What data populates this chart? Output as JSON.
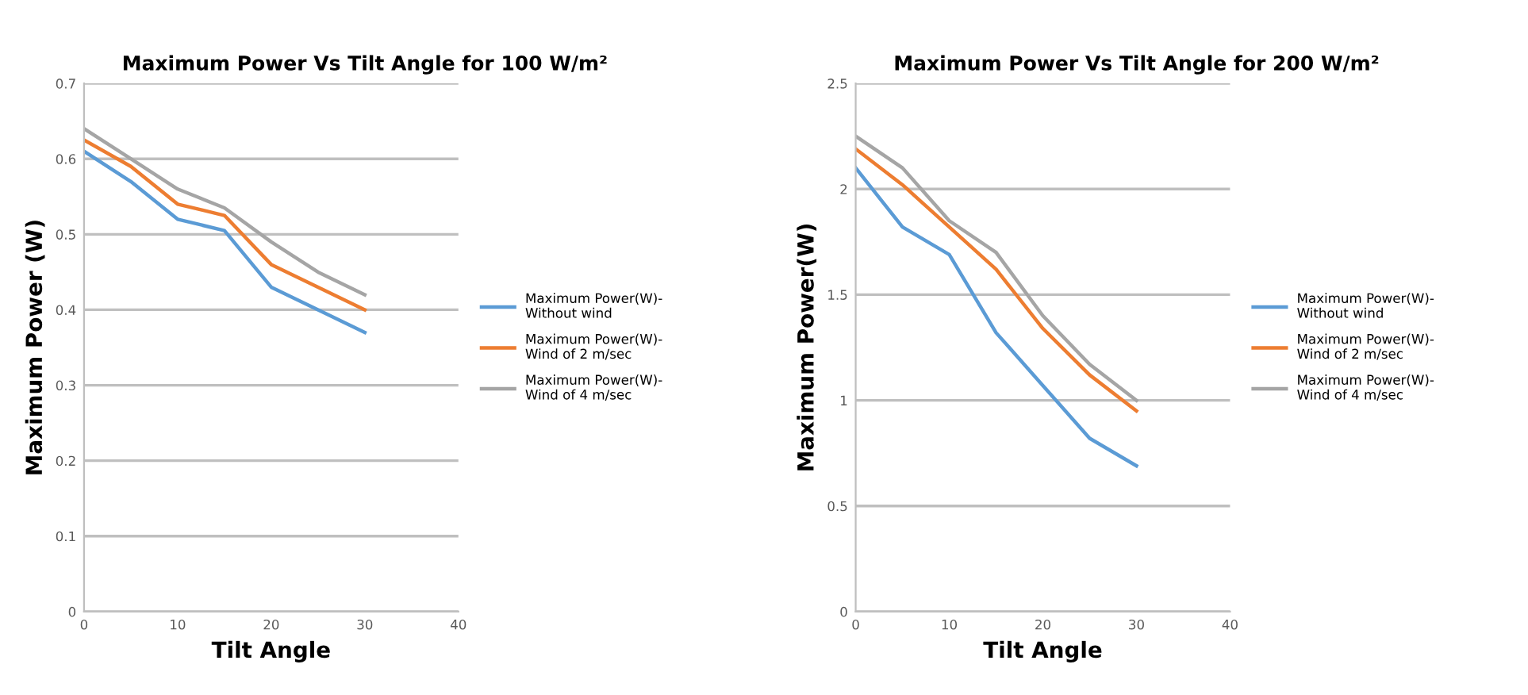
{
  "chart_data": [
    {
      "type": "line",
      "title": "Maximum Power Vs Tilt Angle for 100 W/m²",
      "xlabel": "Tilt Angle",
      "ylabel": "Maximum Power (W)",
      "x": [
        0,
        5,
        10,
        15,
        20,
        25,
        30
      ],
      "xlim": [
        0,
        40
      ],
      "xticks": [
        0,
        10,
        20,
        30,
        40
      ],
      "ylim": [
        0,
        0.7
      ],
      "yticks": [
        0,
        0.1,
        0.2,
        0.3,
        0.4,
        0.5,
        0.6,
        0.7
      ],
      "grid": "y",
      "legend": "right",
      "marker": "none",
      "series": [
        {
          "name": "Maximum Power(W)-\nWithout wind",
          "color": "#5b9bd5",
          "values": [
            0.61,
            0.57,
            0.52,
            0.505,
            0.43,
            0.4,
            0.37
          ]
        },
        {
          "name": "Maximum Power(W)-\nWind of 2 m/sec",
          "color": "#ed7d31",
          "values": [
            0.625,
            0.59,
            0.54,
            0.525,
            0.46,
            0.43,
            0.4
          ]
        },
        {
          "name": "Maximum Power(W)-\nWind of 4 m/sec",
          "color": "#a5a5a5",
          "values": [
            0.64,
            0.6,
            0.56,
            0.535,
            0.49,
            0.45,
            0.42
          ]
        }
      ]
    },
    {
      "type": "line",
      "title": "Maximum Power Vs Tilt Angle for 200 W/m²",
      "xlabel": "Tilt Angle",
      "ylabel": "Maximum Power(W)",
      "x": [
        0,
        5,
        10,
        15,
        20,
        25,
        30
      ],
      "xlim": [
        0,
        40
      ],
      "xticks": [
        0,
        10,
        20,
        30,
        40
      ],
      "ylim": [
        0,
        2.5
      ],
      "yticks": [
        0,
        0.5,
        1,
        1.5,
        2,
        2.5
      ],
      "grid": "y",
      "legend": "right",
      "marker": "none",
      "series": [
        {
          "name": "Maximum Power(W)-\nWithout wind",
          "color": "#5b9bd5",
          "values": [
            2.1,
            1.82,
            1.69,
            1.32,
            1.07,
            0.82,
            0.69
          ]
        },
        {
          "name": "Maximum Power(W)-\nWind of 2 m/sec",
          "color": "#ed7d31",
          "values": [
            2.19,
            2.02,
            1.82,
            1.62,
            1.34,
            1.12,
            0.95
          ]
        },
        {
          "name": "Maximum Power(W)-\nWind of 4 m/sec",
          "color": "#a5a5a5",
          "values": [
            2.25,
            2.1,
            1.85,
            1.7,
            1.4,
            1.17,
            1.0
          ]
        }
      ]
    }
  ]
}
